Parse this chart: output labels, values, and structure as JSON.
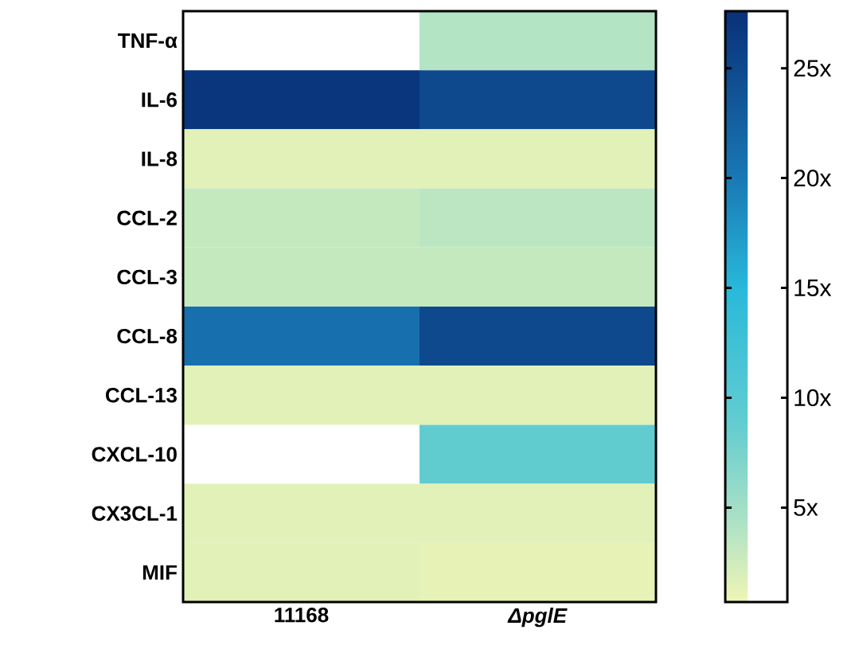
{
  "chart_data": {
    "type": "heatmap",
    "categories": [
      "11168",
      "*ΔpglE*"
    ],
    "y_categories": [
      "TNF-α",
      "IL-6",
      "IL-8",
      "CCL-2",
      "CCL-3",
      "CCL-8",
      "CCL-13",
      "CXCL-10",
      "CX3CL-1",
      "MIF"
    ],
    "cells": [
      [
        null,
        4
      ],
      [
        27,
        25
      ],
      [
        1.5,
        1.5
      ],
      [
        3,
        3.5
      ],
      [
        3,
        3
      ],
      [
        21,
        25
      ],
      [
        1.5,
        1.5
      ],
      [
        null,
        9
      ],
      [
        1.5,
        1.5
      ],
      [
        1.5,
        1.2
      ]
    ],
    "clim": [
      0.7,
      27.6
    ],
    "cticks": [
      {
        "value": 5,
        "label": "5x"
      },
      {
        "value": 10,
        "label": "10x"
      },
      {
        "value": 15,
        "label": "15x"
      },
      {
        "value": 20,
        "label": "20x"
      },
      {
        "value": 25,
        "label": "25x"
      }
    ]
  }
}
